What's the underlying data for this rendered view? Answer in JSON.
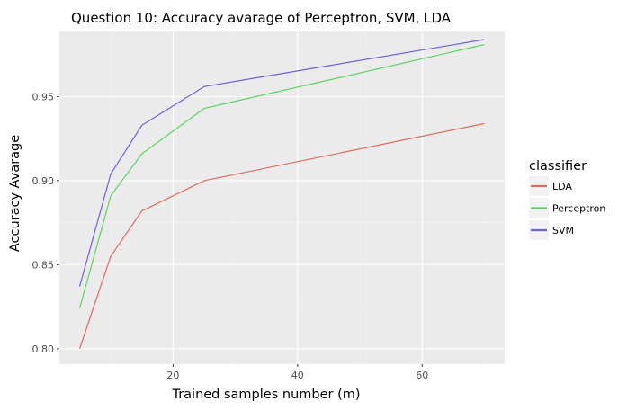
{
  "chart_data": {
    "type": "line",
    "title": "Question 10: Accuracy avarage of Perceptron, SVM, LDA",
    "xlabel": "Trained samples number (m)",
    "ylabel": "Accuracy Avarage",
    "xlim": [
      1.75,
      73.25
    ],
    "ylim": [
      0.7908,
      0.9888
    ],
    "x_ticks": [
      20,
      40,
      60
    ],
    "x_tick_labels": [
      "20",
      "40",
      "60"
    ],
    "y_ticks": [
      0.8,
      0.85,
      0.9,
      0.95
    ],
    "y_tick_labels": [
      "0.80",
      "0.85",
      "0.90",
      "0.95"
    ],
    "grid": true,
    "legend_title": "classifier",
    "legend_position": "right",
    "x": [
      5,
      10,
      15,
      25,
      70
    ],
    "series": [
      {
        "name": "LDA",
        "color": "#e06a5b",
        "values": [
          0.8,
          0.855,
          0.882,
          0.9,
          0.934
        ]
      },
      {
        "name": "Perceptron",
        "color": "#5ad35f",
        "values": [
          0.824,
          0.891,
          0.916,
          0.943,
          0.981
        ]
      },
      {
        "name": "SVM",
        "color": "#6c63d9",
        "values": [
          0.837,
          0.904,
          0.933,
          0.956,
          0.984
        ]
      }
    ]
  }
}
